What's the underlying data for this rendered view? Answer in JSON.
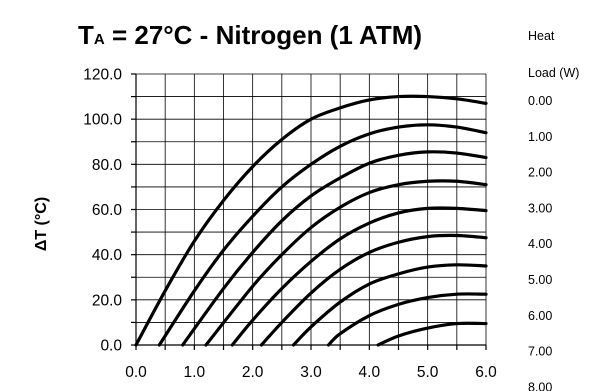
{
  "chart_data": {
    "type": "line",
    "title": {
      "prefix": "T",
      "subscript": "A",
      "suffix": " = 27°C - Nitrogen (1 ATM)"
    },
    "ylabel": "ΔT (°C)",
    "xlabel": "",
    "xlim": [
      0.0,
      6.0
    ],
    "ylim": [
      0.0,
      120.0
    ],
    "x_ticks": [
      "0.0",
      "1.0",
      "2.0",
      "3.0",
      "4.0",
      "5.0",
      "6.0"
    ],
    "y_ticks": [
      "0.0",
      "20.0",
      "40.0",
      "60.0",
      "80.0",
      "100.0",
      "120.0"
    ],
    "grid": true,
    "legend": {
      "title_line1": "Heat",
      "title_line2": "Load (W)",
      "entries": [
        "0.00",
        "1.00",
        "2.00",
        "3.00",
        "4.00",
        "5.00",
        "6.00",
        "7.00",
        "8.00"
      ]
    },
    "series": [
      {
        "x": [
          0.0,
          0.5,
          1.0,
          1.5,
          2.0,
          2.5,
          3.0,
          3.5,
          4.0,
          4.5,
          5.0,
          5.5,
          6.0
        ],
        "y": [
          0,
          24,
          46,
          64,
          79,
          91,
          100,
          105,
          108.5,
          110,
          110,
          109,
          107
        ]
      },
      {
        "x": [
          0.4,
          1.0,
          1.5,
          2.0,
          2.5,
          3.0,
          3.5,
          4.0,
          4.5,
          5.0,
          5.5,
          6.0
        ],
        "y": [
          0,
          24,
          42,
          57,
          70,
          80,
          88,
          93.5,
          96.5,
          97.5,
          96.5,
          94
        ]
      },
      {
        "x": [
          0.8,
          1.5,
          2.0,
          2.5,
          3.0,
          3.5,
          4.0,
          4.5,
          5.0,
          5.5,
          6.0
        ],
        "y": [
          0,
          25,
          41,
          55,
          66,
          74,
          80.5,
          84,
          85.5,
          85,
          83
        ]
      },
      {
        "x": [
          1.2,
          2.0,
          2.5,
          3.0,
          3.5,
          4.0,
          4.5,
          5.0,
          5.5,
          6.0
        ],
        "y": [
          0,
          26,
          40,
          52,
          61,
          67.5,
          71,
          72.5,
          72.5,
          71
        ]
      },
      {
        "x": [
          1.65,
          2.0,
          2.5,
          3.0,
          3.5,
          4.0,
          4.5,
          5.0,
          5.5,
          6.0
        ],
        "y": [
          0,
          11,
          25,
          37,
          47,
          54,
          58.5,
          60.5,
          60.5,
          59.5
        ]
      },
      {
        "x": [
          2.15,
          2.5,
          3.0,
          3.5,
          4.0,
          4.5,
          5.0,
          5.5,
          6.0
        ],
        "y": [
          0,
          10,
          23,
          33.5,
          41,
          45.5,
          48,
          48.5,
          47.5
        ]
      },
      {
        "x": [
          2.7,
          3.0,
          3.5,
          4.0,
          4.5,
          5.0,
          5.5,
          6.0
        ],
        "y": [
          0,
          8,
          19,
          27,
          31.5,
          34.5,
          35.5,
          35
        ]
      },
      {
        "x": [
          3.3,
          3.5,
          4.0,
          4.5,
          5.0,
          5.5,
          6.0
        ],
        "y": [
          0,
          5,
          13,
          18,
          21,
          22.5,
          22.5
        ]
      },
      {
        "x": [
          4.15,
          4.5,
          5.0,
          5.5,
          6.0
        ],
        "y": [
          0,
          4,
          7.5,
          9.5,
          9.5
        ]
      }
    ]
  }
}
